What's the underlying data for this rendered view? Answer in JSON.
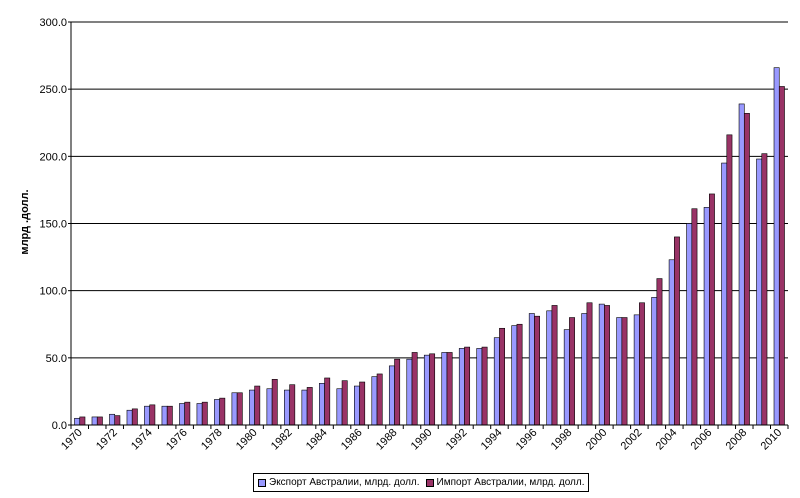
{
  "chart_data": {
    "type": "bar",
    "ylabel": "млрд .долл.",
    "xlabel": "",
    "ylim": [
      0,
      300
    ],
    "yticks": [
      "0.0",
      "50.0",
      "100.0",
      "150.0",
      "200.0",
      "250.0",
      "300.0"
    ],
    "categories": [
      "1970",
      "1971",
      "1972",
      "1973",
      "1974",
      "1975",
      "1976",
      "1977",
      "1978",
      "1979",
      "1980",
      "1981",
      "1982",
      "1983",
      "1984",
      "1985",
      "1986",
      "1987",
      "1988",
      "1989",
      "1990",
      "1991",
      "1992",
      "1993",
      "1994",
      "1995",
      "1996",
      "1997",
      "1998",
      "1999",
      "2000",
      "2001",
      "2002",
      "2003",
      "2004",
      "2005",
      "2006",
      "2007",
      "2008",
      "2009",
      "2010"
    ],
    "tick_labels": [
      "1970",
      "1972",
      "1974",
      "1976",
      "1978",
      "1980",
      "1982",
      "1984",
      "1986",
      "1988",
      "1990",
      "1992",
      "1994",
      "1996",
      "1998",
      "2000",
      "2002",
      "2004",
      "2006",
      "2008",
      "2010"
    ],
    "series": [
      {
        "name": "Экспорт Австралии, млрд. долл.",
        "color": "#9999ff",
        "values": [
          5,
          6,
          8,
          11,
          14,
          14,
          16,
          16,
          19,
          24,
          26,
          27,
          26,
          26,
          31,
          27,
          29,
          36,
          44,
          49,
          52,
          54,
          57,
          57,
          65,
          74,
          83,
          85,
          71,
          83,
          90,
          80,
          82,
          95,
          123,
          150,
          162,
          195,
          239,
          198,
          266
        ]
      },
      {
        "name": "Импорт Австралии, млрд. долл.",
        "color": "#993366",
        "values": [
          6,
          6,
          7,
          12,
          15,
          14,
          17,
          17,
          20,
          24,
          29,
          34,
          30,
          28,
          35,
          33,
          32,
          38,
          49,
          54,
          53,
          54,
          58,
          58,
          72,
          75,
          81,
          89,
          80,
          91,
          89,
          80,
          91,
          109,
          140,
          161,
          172,
          216,
          232,
          202,
          252
        ]
      }
    ]
  }
}
